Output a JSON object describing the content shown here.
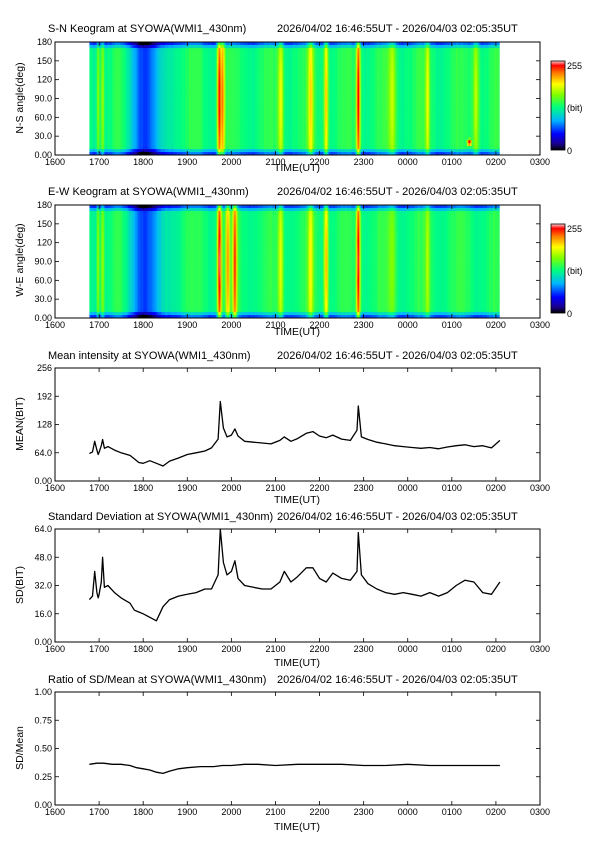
{
  "colors": {
    "frame": "#000000",
    "line": "#000000",
    "background": "#ffffff"
  },
  "shared_ticks": {
    "x": [
      "1600",
      "1700",
      "1800",
      "1900",
      "2000",
      "2100",
      "2200",
      "2300",
      "0000",
      "0100",
      "0200",
      "0300"
    ],
    "xlabel": "TIME(UT)",
    "keogram_y": [
      "0.00",
      "30.0",
      "60.0",
      "90.0",
      "120",
      "150",
      "180"
    ]
  },
  "chart_data": [
    {
      "id": "sn",
      "type": "heatmap",
      "title": "S-N Keogram at SYOWA(WMI1_430nm)",
      "time_range": "2026/04/02 16:46:55UT - 2026/04/03 02:05:35UT",
      "ylabel": "N-S angle(deg)",
      "xlabel": "TIME(UT)",
      "xlim": [
        16.0,
        27.0
      ],
      "data_span": [
        16.78,
        26.09
      ],
      "ylim": [
        0,
        180
      ],
      "colorbar": {
        "max_label": "255",
        "unit_label": "(bit)",
        "min_label": "0"
      },
      "bright_bands": [
        {
          "t": 16.98,
          "w": 0.035,
          "v": 0.7
        },
        {
          "t": 17.08,
          "w": 0.04,
          "v": 0.7
        },
        {
          "t": 19.73,
          "w": 0.05,
          "v": 1.0
        },
        {
          "t": 19.8,
          "w": 0.05,
          "v": 0.88
        },
        {
          "t": 21.12,
          "w": 0.06,
          "v": 0.75
        },
        {
          "t": 21.8,
          "w": 0.06,
          "v": 0.76
        },
        {
          "t": 22.15,
          "w": 0.05,
          "v": 0.82
        },
        {
          "t": 22.88,
          "w": 0.045,
          "v": 1.0
        },
        {
          "t": 23.65,
          "w": 0.09,
          "v": 0.68
        },
        {
          "t": 24.45,
          "w": 0.05,
          "v": 0.72
        },
        {
          "t": 25.55,
          "w": 0.07,
          "v": 0.72
        }
      ],
      "dim_band": {
        "t": 18.1,
        "w": 0.45
      },
      "hot_spot": {
        "t": 25.4,
        "angle": 20,
        "v": 0.98
      }
    },
    {
      "id": "ew",
      "type": "heatmap",
      "title": "E-W Keogram at SYOWA(WMI1_430nm)",
      "time_range": "2026/04/02 16:46:55UT - 2026/04/03 02:05:35UT",
      "ylabel": "W-E angle(deg)",
      "xlabel": "TIME(UT)",
      "xlim": [
        16.0,
        27.0
      ],
      "data_span": [
        16.78,
        26.09
      ],
      "ylim": [
        0,
        180
      ],
      "colorbar": {
        "max_label": "255",
        "unit_label": "(bit)",
        "min_label": "0"
      },
      "bright_bands": [
        {
          "t": 16.98,
          "w": 0.035,
          "v": 0.7
        },
        {
          "t": 17.08,
          "w": 0.04,
          "v": 0.7
        },
        {
          "t": 19.73,
          "w": 0.05,
          "v": 1.0
        },
        {
          "t": 19.92,
          "w": 0.05,
          "v": 0.82
        },
        {
          "t": 20.08,
          "w": 0.05,
          "v": 0.9
        },
        {
          "t": 21.12,
          "w": 0.06,
          "v": 0.72
        },
        {
          "t": 21.8,
          "w": 0.06,
          "v": 0.72
        },
        {
          "t": 22.15,
          "w": 0.05,
          "v": 0.85
        },
        {
          "t": 22.88,
          "w": 0.045,
          "v": 1.0
        },
        {
          "t": 23.65,
          "w": 0.09,
          "v": 0.62
        },
        {
          "t": 24.45,
          "w": 0.05,
          "v": 0.66
        }
      ],
      "dim_band": {
        "t": 18.1,
        "w": 0.45
      },
      "hot_spot": null
    },
    {
      "id": "mean",
      "type": "line",
      "title": "Mean intensity at SYOWA(WMI1_430nm)",
      "time_range": "2026/04/02 16:46:55UT - 2026/04/03 02:05:35UT",
      "ylabel": "MEAN(BIT)",
      "xlabel": "TIME(UT)",
      "xlim": [
        16.0,
        27.0
      ],
      "ylim": [
        0,
        256
      ],
      "yticks": [
        "0.00",
        "64.0",
        "128",
        "192",
        "256"
      ],
      "x": [
        16.78,
        16.85,
        16.9,
        16.95,
        16.98,
        17.0,
        17.05,
        17.08,
        17.12,
        17.2,
        17.35,
        17.5,
        17.7,
        17.8,
        17.9,
        18.0,
        18.15,
        18.3,
        18.45,
        18.6,
        18.8,
        19.0,
        19.2,
        19.4,
        19.55,
        19.7,
        19.75,
        19.82,
        19.9,
        20.0,
        20.08,
        20.15,
        20.3,
        20.5,
        20.7,
        20.9,
        21.1,
        21.2,
        21.35,
        21.5,
        21.7,
        21.85,
        22.0,
        22.15,
        22.3,
        22.5,
        22.7,
        22.85,
        22.88,
        22.95,
        23.1,
        23.3,
        23.5,
        23.7,
        23.9,
        24.1,
        24.3,
        24.5,
        24.7,
        24.9,
        25.1,
        25.3,
        25.5,
        25.7,
        25.9,
        26.09
      ],
      "y": [
        62,
        66,
        90,
        70,
        60,
        65,
        80,
        94,
        74,
        78,
        70,
        64,
        58,
        50,
        42,
        40,
        46,
        40,
        34,
        45,
        52,
        60,
        64,
        68,
        75,
        95,
        180,
        120,
        100,
        104,
        118,
        102,
        90,
        88,
        86,
        84,
        92,
        100,
        90,
        96,
        108,
        112,
        102,
        98,
        104,
        95,
        92,
        115,
        170,
        100,
        94,
        88,
        84,
        80,
        78,
        76,
        74,
        76,
        73,
        77,
        80,
        82,
        78,
        80,
        75,
        92
      ]
    },
    {
      "id": "sd",
      "type": "line",
      "title": "Standard Deviation at SYOWA(WMI1_430nm)",
      "time_range": "2026/04/02 16:46:55UT - 2026/04/03 02:05:35UT",
      "ylabel": "SD(BIT)",
      "xlabel": "TIME(UT)",
      "xlim": [
        16.0,
        27.0
      ],
      "ylim": [
        0,
        64
      ],
      "yticks": [
        "0.00",
        "16.0",
        "32.0",
        "48.0",
        "64.0"
      ],
      "x": [
        16.78,
        16.85,
        16.9,
        16.95,
        16.98,
        17.0,
        17.05,
        17.08,
        17.12,
        17.2,
        17.35,
        17.5,
        17.7,
        17.8,
        17.9,
        18.0,
        18.15,
        18.3,
        18.45,
        18.6,
        18.8,
        19.0,
        19.2,
        19.4,
        19.55,
        19.7,
        19.75,
        19.82,
        19.9,
        20.0,
        20.08,
        20.15,
        20.3,
        20.5,
        20.7,
        20.9,
        21.1,
        21.2,
        21.35,
        21.5,
        21.7,
        21.85,
        22.0,
        22.15,
        22.3,
        22.5,
        22.7,
        22.85,
        22.88,
        22.95,
        23.1,
        23.3,
        23.5,
        23.7,
        23.9,
        24.1,
        24.3,
        24.5,
        24.7,
        24.9,
        25.1,
        25.3,
        25.5,
        25.7,
        25.9,
        26.09
      ],
      "y": [
        24,
        26,
        40,
        28,
        25,
        27,
        34,
        48,
        31,
        32,
        28,
        25,
        22,
        18,
        17,
        16,
        14,
        12,
        20,
        24,
        26,
        27,
        28,
        30,
        30,
        38,
        64,
        45,
        38,
        40,
        46,
        36,
        32,
        31,
        30,
        30,
        34,
        40,
        34,
        37,
        42,
        42,
        36,
        34,
        39,
        36,
        35,
        40,
        62,
        38,
        33,
        30,
        28,
        27,
        28,
        27,
        26,
        28,
        26,
        28,
        32,
        35,
        34,
        28,
        27,
        34
      ]
    },
    {
      "id": "ratio",
      "type": "line",
      "title": "Ratio of SD/Mean at SYOWA(WMI1_430nm)",
      "time_range": "2026/04/02 16:46:55UT - 2026/04/03 02:05:35UT",
      "ylabel": "SD/Mean",
      "xlabel": "TIME(UT)",
      "xlim": [
        16.0,
        27.0
      ],
      "ylim": [
        0,
        1
      ],
      "yticks": [
        "0.00",
        "0.25",
        "0.50",
        "0.75",
        "1.00"
      ],
      "x": [
        16.78,
        16.95,
        17.1,
        17.3,
        17.5,
        17.7,
        17.85,
        18.0,
        18.15,
        18.3,
        18.45,
        18.6,
        18.8,
        19.0,
        19.3,
        19.6,
        19.8,
        20.0,
        20.3,
        20.6,
        21.0,
        21.5,
        22.0,
        22.5,
        23.0,
        23.5,
        24.0,
        24.5,
        25.0,
        25.5,
        26.09
      ],
      "y": [
        0.36,
        0.37,
        0.37,
        0.36,
        0.36,
        0.35,
        0.33,
        0.32,
        0.31,
        0.29,
        0.28,
        0.3,
        0.32,
        0.33,
        0.34,
        0.34,
        0.35,
        0.35,
        0.36,
        0.36,
        0.35,
        0.36,
        0.36,
        0.36,
        0.35,
        0.35,
        0.36,
        0.35,
        0.35,
        0.35,
        0.35
      ]
    }
  ]
}
